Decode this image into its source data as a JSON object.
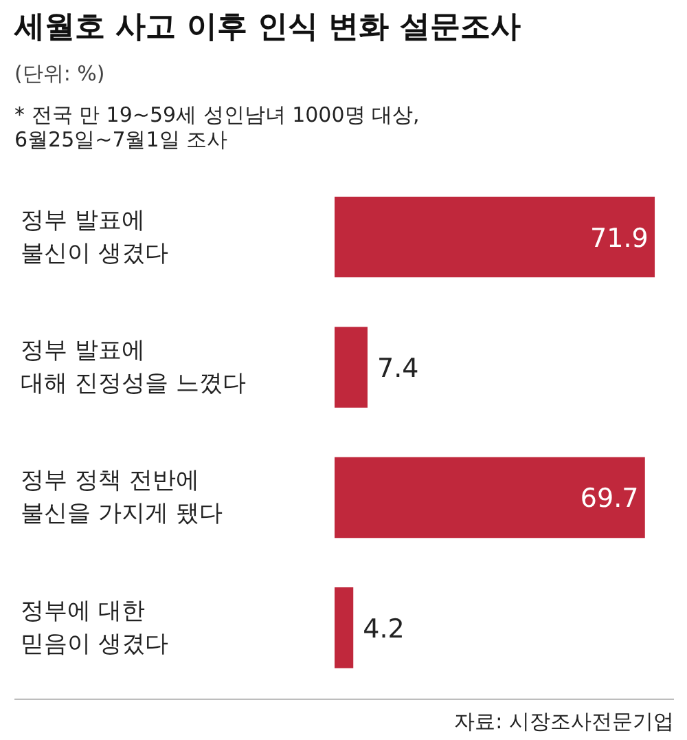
{
  "chart_data": {
    "type": "bar",
    "orientation": "horizontal",
    "title": "세월호 사고 이후 인식 변화 설문조사",
    "subtitle": "(단위: %)",
    "categories": [
      "정부 발표에\n불신이 생겼다",
      "정부 발표에\n대해 진정성을 느꼈다",
      "정부 정책 전반에\n불신을 가지게 됐다",
      "정부에 대한\n믿음이 생겼다"
    ],
    "values": [
      71.9,
      7.4,
      69.7,
      4.2
    ],
    "color": "#c0283c",
    "data_labels": true,
    "annotations": [
      "* 전국 만 19~59세 성인남녀 1000명 대상,\n   6월25일~7월1일 조사",
      "자료: 시장조사전문기업"
    ]
  }
}
